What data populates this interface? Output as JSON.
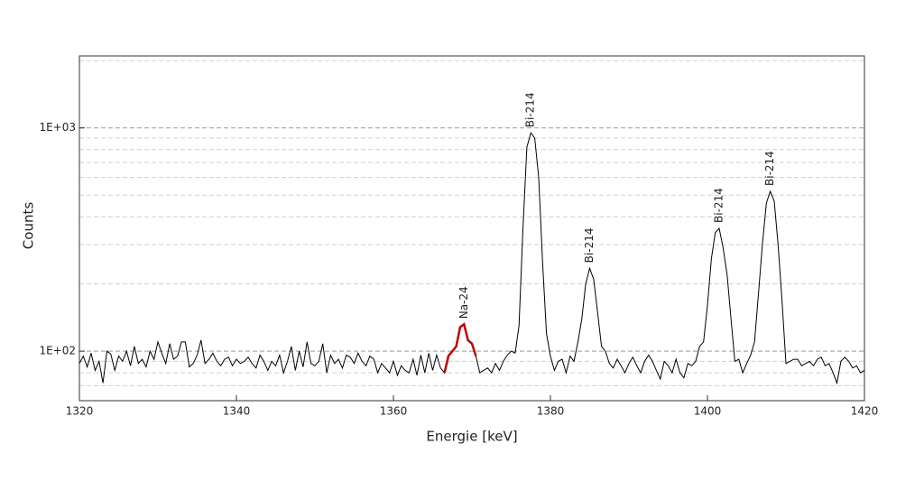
{
  "chart_data": {
    "type": "line",
    "x_label": "Energie [keV]",
    "y_label": "Counts",
    "log_y": true,
    "grid": true,
    "color": "#000000",
    "x": [
      1320,
      1320.5,
      1321,
      1321.5,
      1322,
      1322.5,
      1323,
      1323.5,
      1324,
      1324.5,
      1325,
      1325.5,
      1326,
      1326.5,
      1327,
      1327.5,
      1328,
      1328.5,
      1329,
      1329.5,
      1330,
      1330.5,
      1331,
      1331.5,
      1332,
      1332.5,
      1333,
      1333.5,
      1334,
      1334.5,
      1335,
      1335.5,
      1336,
      1336.5,
      1337,
      1337.5,
      1338,
      1338.5,
      1339,
      1339.5,
      1340,
      1340.5,
      1341,
      1341.5,
      1342,
      1342.5,
      1343,
      1343.5,
      1344,
      1344.5,
      1345,
      1345.5,
      1346,
      1346.5,
      1347,
      1347.5,
      1348,
      1348.5,
      1349,
      1349.5,
      1350,
      1350.5,
      1351,
      1351.5,
      1352,
      1352.5,
      1353,
      1353.5,
      1354,
      1354.5,
      1355,
      1355.5,
      1356,
      1356.5,
      1357,
      1357.5,
      1358,
      1358.5,
      1359,
      1359.5,
      1360,
      1360.5,
      1361,
      1361.5,
      1362,
      1362.5,
      1363,
      1363.5,
      1364,
      1364.5,
      1365,
      1365.5,
      1366,
      1366.5,
      1367,
      1367.5,
      1368,
      1368.5,
      1369,
      1369.5,
      1370,
      1370.5,
      1371,
      1371.5,
      1372,
      1372.5,
      1373,
      1373.5,
      1374,
      1374.5,
      1375,
      1375.5,
      1376,
      1376.5,
      1377,
      1377.5,
      1378,
      1378.5,
      1379,
      1379.5,
      1380,
      1380.5,
      1381,
      1381.5,
      1382,
      1382.5,
      1383,
      1383.5,
      1384,
      1384.5,
      1385,
      1385.5,
      1386,
      1386.5,
      1387,
      1387.5,
      1388,
      1388.5,
      1389,
      1389.5,
      1390,
      1390.5,
      1391,
      1391.5,
      1392,
      1392.5,
      1393,
      1393.5,
      1394,
      1394.5,
      1395,
      1395.5,
      1396,
      1396.5,
      1397,
      1397.5,
      1398,
      1398.5,
      1399,
      1399.5,
      1400,
      1400.5,
      1401,
      1401.5,
      1402,
      1402.5,
      1403,
      1403.5,
      1404,
      1404.5,
      1405,
      1405.5,
      1406,
      1406.5,
      1407,
      1407.5,
      1408,
      1408.5,
      1409,
      1409.5,
      1410,
      1410.5,
      1411,
      1411.5,
      1412,
      1412.5,
      1413,
      1413.5,
      1414,
      1414.5,
      1415,
      1415.5,
      1416,
      1416.5,
      1417,
      1417.5,
      1418,
      1418.5,
      1419,
      1419.5,
      1420
    ],
    "values": [
      88,
      95,
      85,
      98,
      82,
      90,
      72,
      100,
      97,
      82,
      95,
      90,
      100,
      86,
      105,
      88,
      92,
      85,
      100,
      92,
      110,
      98,
      88,
      108,
      92,
      95,
      110,
      110,
      85,
      88,
      96,
      112,
      88,
      92,
      98,
      90,
      86,
      92,
      94,
      86,
      92,
      88,
      90,
      94,
      88,
      84,
      96,
      90,
      82,
      90,
      86,
      96,
      80,
      90,
      105,
      82,
      100,
      85,
      110,
      88,
      86,
      90,
      108,
      80,
      96,
      88,
      92,
      84,
      96,
      94,
      88,
      98,
      90,
      86,
      95,
      92,
      80,
      88,
      84,
      80,
      90,
      78,
      86,
      82,
      80,
      92,
      78,
      96,
      80,
      98,
      82,
      96,
      84,
      80,
      95,
      100,
      105,
      128,
      132,
      112,
      108,
      95,
      80,
      82,
      84,
      80,
      88,
      82,
      90,
      96,
      100,
      98,
      130,
      350,
      820,
      950,
      900,
      600,
      250,
      120,
      95,
      82,
      90,
      92,
      80,
      95,
      90,
      110,
      140,
      200,
      235,
      210,
      150,
      105,
      100,
      88,
      84,
      92,
      86,
      80,
      88,
      94,
      86,
      80,
      90,
      96,
      90,
      82,
      75,
      90,
      86,
      80,
      92,
      80,
      76,
      88,
      86,
      90,
      105,
      110,
      160,
      260,
      340,
      355,
      290,
      220,
      140,
      90,
      92,
      80,
      88,
      96,
      110,
      180,
      300,
      460,
      520,
      470,
      300,
      170,
      88,
      90,
      92,
      92,
      86,
      88,
      90,
      86,
      92,
      94,
      86,
      88,
      80,
      72,
      90,
      94,
      90,
      84,
      86,
      80,
      82
    ],
    "highlight": {
      "color": "#c00000",
      "xrange": [
        1366.5,
        1370.5
      ]
    },
    "annotations": [
      {
        "text": "Na-24",
        "x": 1369,
        "color": "#c00000"
      },
      {
        "text": "Bi-214",
        "x": 1377.5,
        "color": "#000000"
      },
      {
        "text": "Bi-214",
        "x": 1385,
        "color": "#000000"
      },
      {
        "text": "Bi-214",
        "x": 1401.5,
        "color": "#000000"
      },
      {
        "text": "Bi-214",
        "x": 1408,
        "color": "#000000"
      }
    ],
    "xlim": [
      1320,
      1420
    ],
    "xticks": [
      1320,
      1340,
      1360,
      1380,
      1400,
      1420
    ],
    "ylim": [
      60,
      2100
    ],
    "yticks": [
      {
        "value": 100,
        "label": "1E+02"
      },
      {
        "value": 1000,
        "label": "1E+03"
      }
    ],
    "yminor": [
      70,
      80,
      90,
      200,
      300,
      400,
      500,
      600,
      700,
      800,
      900,
      2000
    ]
  }
}
